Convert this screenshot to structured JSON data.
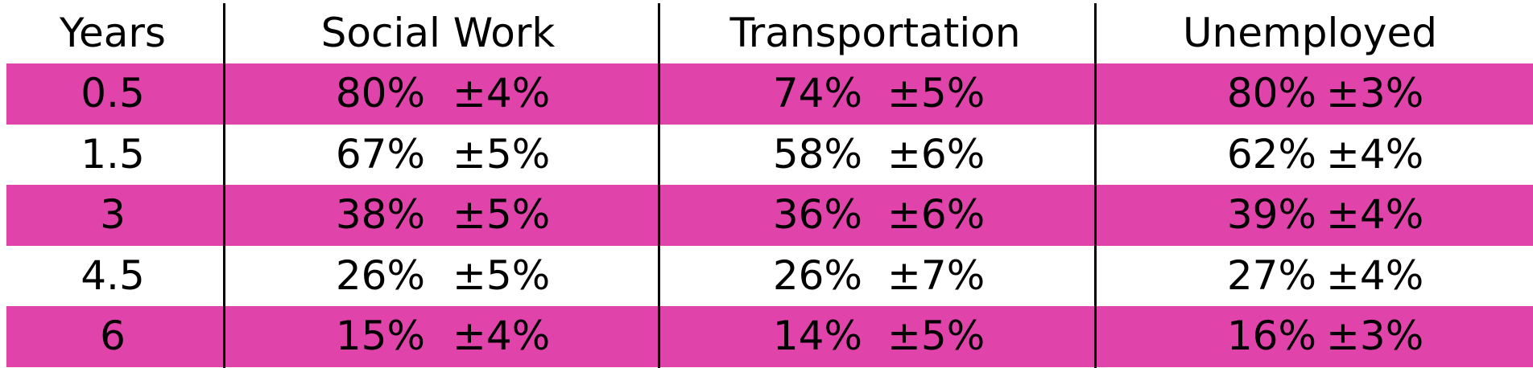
{
  "header": {
    "columns": [
      "Years",
      "Social Work",
      "Transportation",
      "Unemployed"
    ]
  },
  "table": {
    "rows": [
      [
        "0.5",
        "80%",
        "±4%",
        "74%",
        "±5%",
        "80%",
        "±3%"
      ],
      [
        "1.5",
        "67%",
        "±5%",
        "58%",
        "±6%",
        "62%",
        "±4%"
      ],
      [
        "3",
        "38%",
        "±5%",
        "36%",
        "±6%",
        "39%",
        "±4%"
      ],
      [
        "4.5",
        "26%",
        "±5%",
        "26%",
        "±7%",
        "27%",
        "±4%"
      ],
      [
        "6",
        "15%",
        "±4%",
        "14%",
        "±5%",
        "16%",
        "±3%"
      ]
    ]
  }
}
